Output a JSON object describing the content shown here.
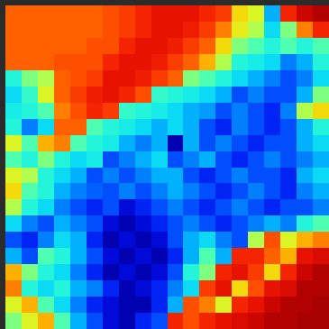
{
  "chart_data": {
    "type": "heatmap",
    "tick_labels": false,
    "color_range": [
      0,
      1
    ],
    "cells": [
      [
        0.78,
        0.78,
        0.78,
        0.78,
        0.78,
        0.78,
        0.8,
        0.82,
        0.85,
        0.88,
        0.88,
        0.88,
        0.85,
        0.82,
        0.65,
        0.6,
        0.3,
        0.85,
        0.92,
        0.95
      ],
      [
        0.78,
        0.78,
        0.78,
        0.78,
        0.78,
        0.78,
        0.8,
        0.82,
        0.85,
        0.88,
        0.88,
        0.86,
        0.82,
        0.75,
        0.62,
        0.55,
        0.35,
        0.5,
        0.75,
        0.85
      ],
      [
        0.78,
        0.78,
        0.78,
        0.78,
        0.78,
        0.8,
        0.8,
        0.85,
        0.88,
        0.88,
        0.86,
        0.82,
        0.78,
        0.65,
        0.5,
        0.45,
        0.4,
        0.45,
        0.4,
        0.45
      ],
      [
        0.78,
        0.78,
        0.78,
        0.8,
        0.8,
        0.8,
        0.85,
        0.88,
        0.88,
        0.86,
        0.82,
        0.78,
        0.7,
        0.55,
        0.4,
        0.38,
        0.35,
        0.25,
        0.3,
        0.4
      ],
      [
        0.4,
        0.5,
        0.55,
        0.78,
        0.8,
        0.82,
        0.88,
        0.88,
        0.86,
        0.82,
        0.78,
        0.5,
        0.45,
        0.4,
        0.35,
        0.3,
        0.25,
        0.2,
        0.25,
        0.35
      ],
      [
        0.35,
        0.42,
        0.6,
        0.78,
        0.82,
        0.86,
        0.88,
        0.85,
        0.8,
        0.42,
        0.4,
        0.38,
        0.35,
        0.3,
        0.2,
        0.25,
        0.2,
        0.2,
        0.3,
        0.5
      ],
      [
        0.38,
        0.4,
        0.45,
        0.75,
        0.8,
        0.85,
        0.82,
        0.42,
        0.4,
        0.38,
        0.35,
        0.3,
        0.28,
        0.2,
        0.25,
        0.2,
        0.15,
        0.25,
        0.55,
        0.65
      ],
      [
        0.4,
        0.25,
        0.35,
        0.78,
        0.78,
        0.45,
        0.4,
        0.38,
        0.35,
        0.3,
        0.35,
        0.3,
        0.2,
        0.15,
        0.25,
        0.2,
        0.15,
        0.2,
        0.3,
        0.4
      ],
      [
        0.6,
        0.45,
        0.7,
        0.75,
        0.45,
        0.4,
        0.38,
        0.3,
        0.25,
        0.3,
        0.05,
        0.3,
        0.2,
        0.25,
        0.2,
        0.15,
        0.2,
        0.2,
        0.3,
        0.35
      ],
      [
        0.45,
        0.4,
        0.5,
        0.4,
        0.35,
        0.38,
        0.2,
        0.25,
        0.3,
        0.35,
        0.2,
        0.25,
        0.3,
        0.2,
        0.15,
        0.2,
        0.25,
        0.2,
        0.25,
        0.3
      ],
      [
        0.6,
        0.55,
        0.4,
        0.35,
        0.3,
        0.2,
        0.25,
        0.2,
        0.25,
        0.3,
        0.3,
        0.2,
        0.15,
        0.2,
        0.25,
        0.2,
        0.2,
        0.15,
        0.3,
        0.35
      ],
      [
        0.65,
        0.45,
        0.4,
        0.3,
        0.25,
        0.22,
        0.2,
        0.25,
        0.2,
        0.25,
        0.3,
        0.25,
        0.2,
        0.15,
        0.2,
        0.25,
        0.2,
        0.15,
        0.25,
        0.3
      ],
      [
        0.55,
        0.4,
        0.35,
        0.25,
        0.2,
        0.15,
        0.2,
        0.1,
        0.15,
        0.2,
        0.25,
        0.2,
        0.15,
        0.2,
        0.25,
        0.2,
        0.15,
        0.2,
        0.2,
        0.25
      ],
      [
        0.35,
        0.25,
        0.2,
        0.3,
        0.25,
        0.2,
        0.1,
        0.05,
        0.1,
        0.15,
        0.2,
        0.25,
        0.2,
        0.15,
        0.2,
        0.25,
        0.3,
        0.25,
        0.4,
        0.45
      ],
      [
        0.2,
        0.15,
        0.25,
        0.35,
        0.3,
        0.15,
        0.05,
        0.1,
        0.05,
        0.1,
        0.2,
        0.3,
        0.35,
        0.25,
        0.2,
        0.55,
        0.8,
        0.6,
        0.7,
        0.75
      ],
      [
        0.3,
        0.2,
        0.45,
        0.4,
        0.3,
        0.2,
        0.1,
        0.05,
        0.1,
        0.05,
        0.15,
        0.3,
        0.45,
        0.3,
        0.85,
        0.85,
        0.78,
        0.7,
        0.88,
        0.9
      ],
      [
        0.7,
        0.5,
        0.4,
        0.35,
        0.25,
        0.15,
        0.05,
        0.1,
        0.05,
        0.1,
        0.2,
        0.4,
        0.5,
        0.85,
        0.88,
        0.82,
        0.65,
        0.85,
        0.92,
        0.95
      ],
      [
        0.75,
        0.4,
        0.35,
        0.4,
        0.3,
        0.25,
        0.15,
        0.05,
        0.1,
        0.15,
        0.25,
        0.35,
        0.82,
        0.88,
        0.65,
        0.8,
        0.88,
        0.9,
        0.95,
        0.95
      ],
      [
        0.6,
        0.7,
        0.45,
        0.35,
        0.25,
        0.15,
        0.1,
        0.05,
        0.05,
        0.15,
        0.3,
        0.8,
        0.75,
        0.6,
        0.85,
        0.88,
        0.92,
        0.95,
        0.95,
        0.96
      ],
      [
        0.5,
        0.6,
        0.7,
        0.45,
        0.3,
        0.2,
        0.1,
        0.05,
        0.15,
        0.2,
        0.85,
        0.8,
        0.85,
        0.88,
        0.9,
        0.92,
        0.95,
        0.95,
        0.96,
        0.96
      ]
    ]
  }
}
